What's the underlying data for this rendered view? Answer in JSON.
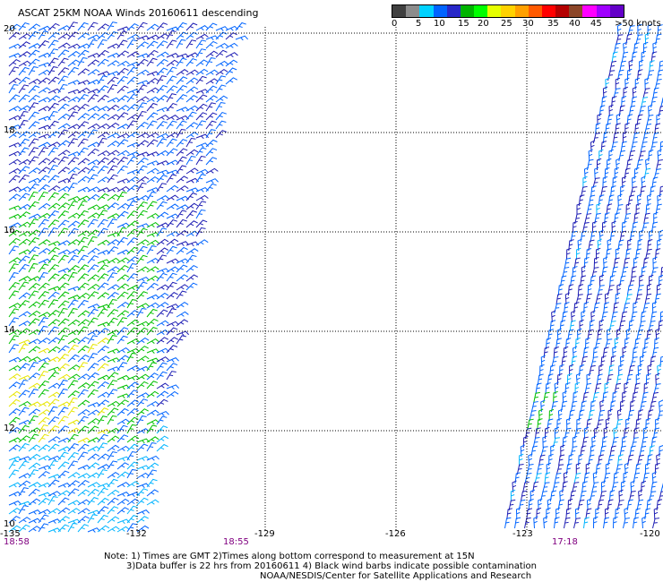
{
  "title": "ASCAT 25KM NOAA Winds 20160611 descending",
  "scale": {
    "colors": [
      "#404040",
      "#8c8c8c",
      "#00d2ff",
      "#0064ff",
      "#2828c8",
      "#00b400",
      "#00ff00",
      "#e6ff00",
      "#ffd200",
      "#ffa000",
      "#ff5a00",
      "#ff0000",
      "#b40000",
      "#8c4628",
      "#ff00ff",
      "#a000ff",
      "#6400c8"
    ],
    "labels": [
      "0",
      "5",
      "10",
      "15",
      "20",
      "25",
      "30",
      "35",
      "40",
      "45",
      ">50 knots"
    ]
  },
  "axes": {
    "lat_labels": [
      "20",
      "18",
      "16",
      "14",
      "12",
      "10"
    ],
    "lon_labels": [
      "-135",
      "-132",
      "-129",
      "-126",
      "-123",
      "-120"
    ]
  },
  "times": [
    "18:58",
    "18:55",
    "17:18"
  ],
  "notes": [
    "Note: 1) Times are GMT 2)Times along bottom correspond to measurement at 15N",
    "3)Data buffer is 22 hrs from 20160611 4) Black wind barbs indicate possible contamination",
    "NOAA/NESDIS/Center for Satellite Applications and Research"
  ]
}
